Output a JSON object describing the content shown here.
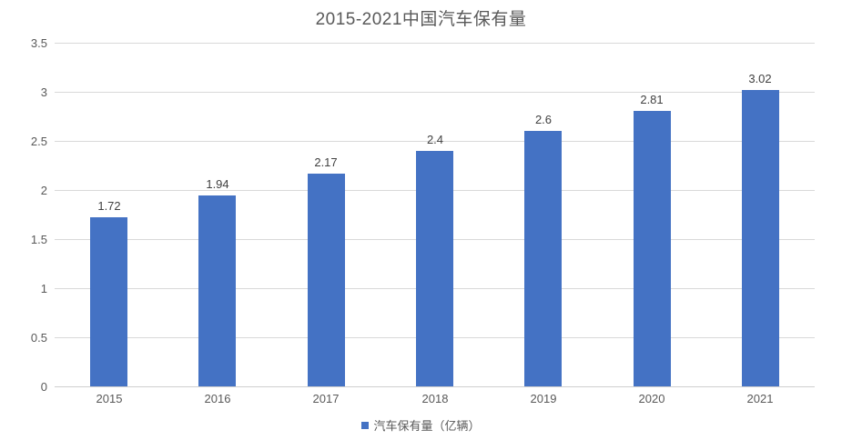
{
  "title": "2015-2021中国汽车保有量",
  "legend": {
    "label": "汽车保有量（亿辆）",
    "marker_color": "#4472C4"
  },
  "colors": {
    "bar": "#4472C4",
    "gridline": "#D9D9D9",
    "axis_line": "#CFCFCF",
    "title_text": "#595959",
    "tick_text": "#595959",
    "value_label_text": "#404040",
    "background": "#FFFFFF"
  },
  "chart_data": {
    "type": "bar",
    "title": "2015-2021中国汽车保有量",
    "categories": [
      "2015",
      "2016",
      "2017",
      "2018",
      "2019",
      "2020",
      "2021"
    ],
    "values": [
      1.72,
      1.94,
      2.17,
      2.4,
      2.6,
      2.81,
      3.02
    ],
    "value_labels": [
      "1.72",
      "1.94",
      "2.17",
      "2.4",
      "2.6",
      "2.81",
      "3.02"
    ],
    "series_name": "汽车保有量（亿辆）",
    "xlabel": "",
    "ylabel": "",
    "ylim": [
      0,
      3.5
    ],
    "ytick_interval": 0.5,
    "ytick_labels": [
      "0",
      "0.5",
      "1",
      "1.5",
      "2",
      "2.5",
      "3",
      "3.5"
    ],
    "grid": true,
    "legend_position": "bottom"
  }
}
